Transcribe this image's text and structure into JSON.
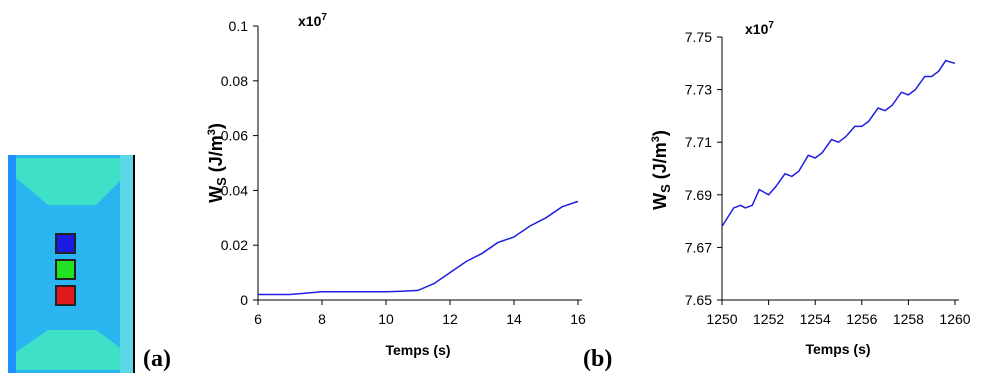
{
  "panel_labels": [
    "(a)",
    "(b)"
  ],
  "chart_data": [
    {
      "type": "line",
      "annotation": {
        "base": "x10",
        "exponent": "7"
      },
      "x_label": "Temps (s)",
      "y_label": {
        "main": "W",
        "sub": "S",
        "text": " (J/m",
        "sup": "3",
        "end": ")"
      },
      "xlim": [
        6,
        16
      ],
      "xticks": [
        6,
        8,
        10,
        12,
        14,
        16
      ],
      "ylim": [
        0,
        0.1
      ],
      "yticks": [
        0,
        0.02,
        0.04,
        0.06,
        0.08,
        0.1
      ],
      "series": [
        {
          "color": "#1f1fe0",
          "x": [
            6,
            7,
            8,
            9,
            9.5,
            10,
            10.5,
            11,
            11.5,
            12,
            12.5,
            13,
            13.5,
            14,
            14.5,
            15,
            15.5,
            16
          ],
          "values": [
            0.002,
            0.002,
            0.003,
            0.003,
            0.003,
            0.003,
            0.0032,
            0.0035,
            0.006,
            0.01,
            0.014,
            0.017,
            0.021,
            0.023,
            0.027,
            0.03,
            0.034,
            0.036
          ]
        }
      ]
    },
    {
      "type": "line",
      "annotation": {
        "base": "x10",
        "exponent": "7"
      },
      "x_label": "Temps (s)",
      "y_label": {
        "main": "W",
        "sub": "S",
        "text": " (J/m",
        "sup": "3",
        "end": ")"
      },
      "xlim": [
        1250,
        1260
      ],
      "xticks": [
        1250,
        1252,
        1254,
        1256,
        1258,
        1260
      ],
      "ylim": [
        7.65,
        7.75
      ],
      "yticks": [
        7.65,
        7.67,
        7.69,
        7.71,
        7.73,
        7.75
      ],
      "series": [
        {
          "color": "#1f1fe0",
          "x": [
            1250,
            1250.5,
            1250.8,
            1251,
            1251.3,
            1251.6,
            1252,
            1252.3,
            1252.7,
            1253,
            1253.3,
            1253.7,
            1254,
            1254.3,
            1254.7,
            1255,
            1255.3,
            1255.7,
            1256,
            1256.3,
            1256.7,
            1257,
            1257.3,
            1257.7,
            1258,
            1258.3,
            1258.7,
            1259,
            1259.3,
            1259.6,
            1260
          ],
          "values": [
            7.678,
            7.685,
            7.686,
            7.685,
            7.686,
            7.692,
            7.69,
            7.693,
            7.698,
            7.697,
            7.699,
            7.705,
            7.704,
            7.706,
            7.711,
            7.71,
            7.712,
            7.716,
            7.716,
            7.718,
            7.723,
            7.722,
            7.724,
            7.729,
            7.728,
            7.73,
            7.735,
            7.735,
            7.737,
            7.741,
            7.74
          ]
        }
      ]
    }
  ]
}
